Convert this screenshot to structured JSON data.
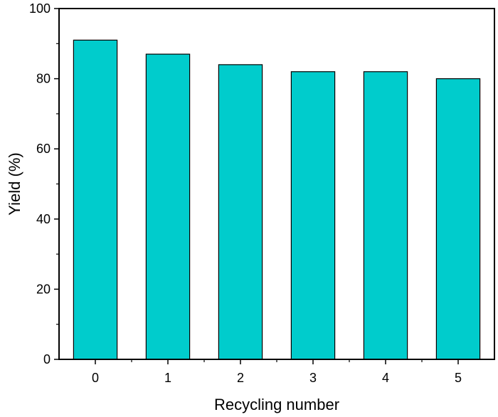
{
  "chart_data": {
    "type": "bar",
    "categories": [
      "0",
      "1",
      "2",
      "3",
      "4",
      "5"
    ],
    "values": [
      91,
      87,
      84,
      82,
      82,
      80
    ],
    "xlabel": "Recycling number",
    "ylabel": "Yield (%)",
    "ylim": [
      0,
      100
    ],
    "yticks": [
      0,
      20,
      40,
      60,
      80,
      100
    ],
    "bar_color": "#00CCCC",
    "bar_edge_color": "#000000",
    "grid": false,
    "legend": "none"
  }
}
